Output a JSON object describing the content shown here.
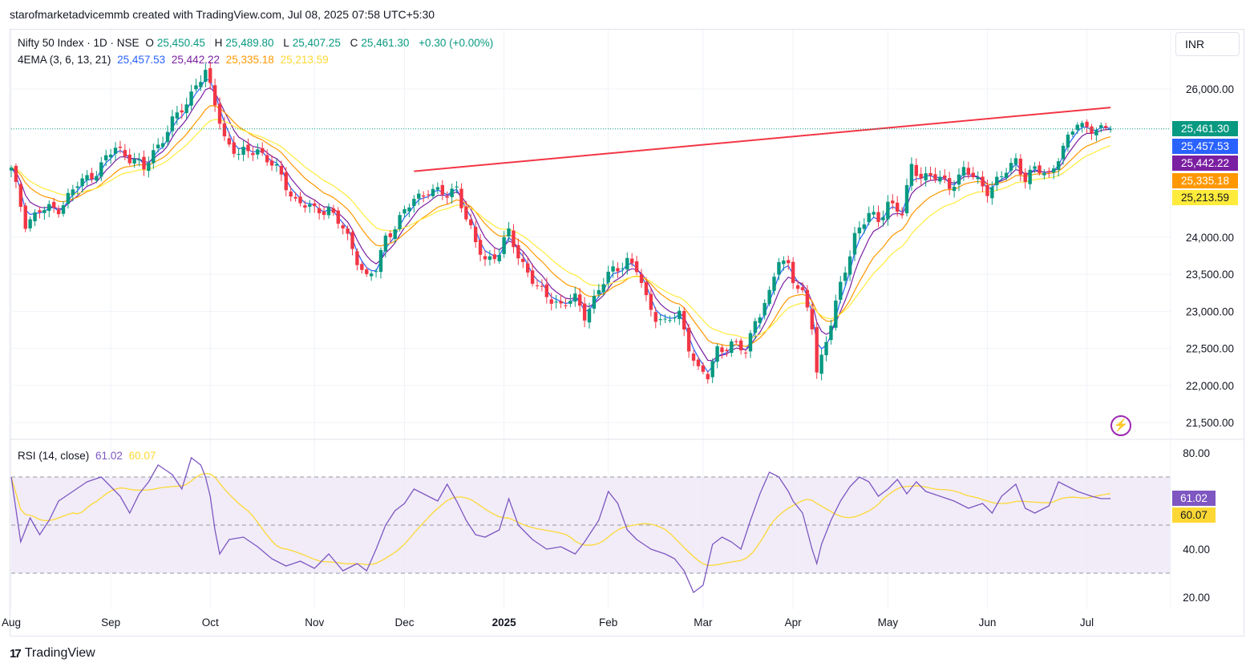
{
  "header": {
    "caption": "starofmarketadvicemmb created with TradingView.com, Jul 08, 2025 07:58 UTC+5:30"
  },
  "legend": {
    "symbol": "Nifty 50 Index · 1D · NSE",
    "open_label": "O",
    "open": "25,450.45",
    "high_label": "H",
    "high": "25,489.80",
    "low_label": "L",
    "low": "25,407.25",
    "close_label": "C",
    "close": "25,461.30",
    "change": "+0.30 (+0.00%)",
    "ema_label": "4EMA (3, 6, 13, 21)",
    "ema3": "25,457.53",
    "ema6": "25,442.22",
    "ema13": "25,335.18",
    "ema21": "25,213.59",
    "rsi_label": "RSI (14, close)",
    "rsi_value": "61.02",
    "rsi_ma_value": "60.07"
  },
  "toolbar": {
    "currency": "INR"
  },
  "footer": {
    "brand_mark": "17",
    "brand": "TradingView"
  },
  "colors": {
    "up": "#089981",
    "down": "#f23645",
    "ema3": "#2962ff",
    "ema6": "#7b1fa2",
    "ema13": "#ff9800",
    "ema21": "#ffeb3b",
    "trendline": "#f23645",
    "rsi": "#7e57c2",
    "rsi_ma": "#fdd835",
    "rsi_band": "#ede7f6"
  },
  "chart_data": {
    "type": "candlestick",
    "price_axis": {
      "ticks": [
        21500,
        22000,
        22500,
        23000,
        23500,
        24000,
        26000
      ],
      "tick_labels": [
        "21,500.00",
        "22,000.00",
        "22,500.00",
        "23,000.00",
        "23,500.00",
        "24,000.00",
        "26,000.00"
      ],
      "range": [
        21500,
        26000
      ]
    },
    "price_tags": [
      {
        "value": 25461.3,
        "label": "25,461.30",
        "color": "#089981"
      },
      {
        "value": 25457.53,
        "label": "25,457.53",
        "color": "#2962ff"
      },
      {
        "value": 25442.22,
        "label": "25,442.22",
        "color": "#7b1fa2"
      },
      {
        "value": 25335.18,
        "label": "25,335.18",
        "color": "#ff9800"
      },
      {
        "value": 25213.59,
        "label": "25,213.59",
        "color": "#ffeb3b"
      }
    ],
    "last_close": 25461.3,
    "time_axis": {
      "labels": [
        "Aug",
        "Sep",
        "Oct",
        "Nov",
        "Dec",
        "2025",
        "Feb",
        "Mar",
        "Apr",
        "May",
        "Jun",
        "Jul"
      ],
      "bar_index": [
        0,
        21,
        42,
        64,
        83,
        104,
        126,
        146,
        165,
        185,
        206,
        227
      ]
    },
    "trendline": {
      "from": {
        "bar": 85,
        "price": 24890
      },
      "to": {
        "bar": 232,
        "price": 25750
      }
    },
    "close_path": [
      [
        0,
        24900
      ],
      [
        3,
        24200
      ],
      [
        6,
        24350
      ],
      [
        10,
        24400
      ],
      [
        14,
        24700
      ],
      [
        18,
        24900
      ],
      [
        22,
        25200
      ],
      [
        26,
        25050
      ],
      [
        28,
        24900
      ],
      [
        30,
        25150
      ],
      [
        34,
        25550
      ],
      [
        37,
        25800
      ],
      [
        39,
        26100
      ],
      [
        41,
        26200
      ],
      [
        43,
        25800
      ],
      [
        45,
        25350
      ],
      [
        48,
        25100
      ],
      [
        52,
        25200
      ],
      [
        56,
        24900
      ],
      [
        60,
        24500
      ],
      [
        64,
        24350
      ],
      [
        67,
        24400
      ],
      [
        70,
        24100
      ],
      [
        72,
        23850
      ],
      [
        75,
        23450
      ],
      [
        77,
        23550
      ],
      [
        79,
        24000
      ],
      [
        82,
        24250
      ],
      [
        85,
        24500
      ],
      [
        88,
        24650
      ],
      [
        92,
        24550
      ],
      [
        94,
        24700
      ],
      [
        96,
        24250
      ],
      [
        98,
        23900
      ],
      [
        100,
        23700
      ],
      [
        103,
        23800
      ],
      [
        105,
        24050
      ],
      [
        107,
        23750
      ],
      [
        109,
        23550
      ],
      [
        111,
        23300
      ],
      [
        113,
        23200
      ],
      [
        116,
        23100
      ],
      [
        119,
        23150
      ],
      [
        121,
        22950
      ],
      [
        124,
        23300
      ],
      [
        127,
        23550
      ],
      [
        130,
        23700
      ],
      [
        132,
        23550
      ],
      [
        134,
        23150
      ],
      [
        136,
        22950
      ],
      [
        138,
        22850
      ],
      [
        141,
        22950
      ],
      [
        143,
        22550
      ],
      [
        145,
        22200
      ],
      [
        147,
        22100
      ],
      [
        149,
        22500
      ],
      [
        152,
        22550
      ],
      [
        155,
        22450
      ],
      [
        157,
        22900
      ],
      [
        160,
        23200
      ],
      [
        162,
        23700
      ],
      [
        164,
        23650
      ],
      [
        165,
        23450
      ],
      [
        167,
        23200
      ],
      [
        169,
        22800
      ],
      [
        170,
        22200
      ],
      [
        171,
        22400
      ],
      [
        173,
        22850
      ],
      [
        176,
        23550
      ],
      [
        178,
        24050
      ],
      [
        181,
        24300
      ],
      [
        183,
        24200
      ],
      [
        185,
        24500
      ],
      [
        188,
        24300
      ],
      [
        190,
        24950
      ],
      [
        192,
        24850
      ],
      [
        195,
        24800
      ],
      [
        198,
        24700
      ],
      [
        201,
        24900
      ],
      [
        204,
        24750
      ],
      [
        206,
        24650
      ],
      [
        209,
        24800
      ],
      [
        212,
        25050
      ],
      [
        214,
        24800
      ],
      [
        216,
        24900
      ],
      [
        219,
        24850
      ],
      [
        221,
        25100
      ],
      [
        223,
        25300
      ],
      [
        225,
        25550
      ],
      [
        227,
        25500
      ],
      [
        230,
        25420
      ],
      [
        232,
        25461
      ]
    ],
    "rsi_axis": {
      "ticks": [
        20,
        40,
        80
      ],
      "tick_labels": [
        "20.00",
        "40.00",
        "80.00"
      ],
      "range": [
        15,
        85
      ],
      "bands": [
        30,
        50,
        70
      ]
    },
    "rsi_path": [
      [
        0,
        70
      ],
      [
        2,
        43
      ],
      [
        4,
        53
      ],
      [
        6,
        46
      ],
      [
        8,
        52
      ],
      [
        10,
        60
      ],
      [
        13,
        64
      ],
      [
        16,
        68
      ],
      [
        19,
        70
      ],
      [
        21,
        66
      ],
      [
        23,
        62
      ],
      [
        25,
        55
      ],
      [
        27,
        63
      ],
      [
        29,
        68
      ],
      [
        31,
        75
      ],
      [
        34,
        71
      ],
      [
        36,
        65
      ],
      [
        38,
        78
      ],
      [
        40,
        75
      ],
      [
        41,
        70
      ],
      [
        42,
        62
      ],
      [
        43,
        48
      ],
      [
        44,
        38
      ],
      [
        46,
        44
      ],
      [
        49,
        45
      ],
      [
        52,
        41
      ],
      [
        55,
        36
      ],
      [
        58,
        33
      ],
      [
        61,
        35
      ],
      [
        64,
        32
      ],
      [
        67,
        38
      ],
      [
        70,
        31
      ],
      [
        73,
        34
      ],
      [
        75,
        31
      ],
      [
        77,
        40
      ],
      [
        79,
        50
      ],
      [
        81,
        56
      ],
      [
        83,
        59
      ],
      [
        85,
        65
      ],
      [
        87,
        63
      ],
      [
        90,
        60
      ],
      [
        92,
        67
      ],
      [
        94,
        60
      ],
      [
        96,
        52
      ],
      [
        98,
        46
      ],
      [
        100,
        45
      ],
      [
        103,
        48
      ],
      [
        105,
        61
      ],
      [
        107,
        50
      ],
      [
        110,
        44
      ],
      [
        113,
        40
      ],
      [
        116,
        41
      ],
      [
        119,
        38
      ],
      [
        121,
        43
      ],
      [
        124,
        52
      ],
      [
        126,
        64
      ],
      [
        128,
        59
      ],
      [
        130,
        48
      ],
      [
        132,
        44
      ],
      [
        135,
        40
      ],
      [
        138,
        38
      ],
      [
        140,
        36
      ],
      [
        142,
        31
      ],
      [
        144,
        22
      ],
      [
        146,
        25
      ],
      [
        148,
        42
      ],
      [
        150,
        45
      ],
      [
        152,
        43
      ],
      [
        154,
        40
      ],
      [
        156,
        52
      ],
      [
        158,
        63
      ],
      [
        160,
        72
      ],
      [
        162,
        70
      ],
      [
        164,
        64
      ],
      [
        165,
        60
      ],
      [
        167,
        55
      ],
      [
        169,
        40
      ],
      [
        170,
        34
      ],
      [
        171,
        42
      ],
      [
        173,
        52
      ],
      [
        175,
        60
      ],
      [
        177,
        66
      ],
      [
        179,
        70
      ],
      [
        181,
        68
      ],
      [
        183,
        62
      ],
      [
        185,
        65
      ],
      [
        187,
        69
      ],
      [
        189,
        63
      ],
      [
        191,
        68
      ],
      [
        193,
        64
      ],
      [
        196,
        62
      ],
      [
        199,
        60
      ],
      [
        202,
        57
      ],
      [
        205,
        59
      ],
      [
        207,
        55
      ],
      [
        209,
        62
      ],
      [
        212,
        67
      ],
      [
        214,
        57
      ],
      [
        216,
        55
      ],
      [
        219,
        58
      ],
      [
        221,
        68
      ],
      [
        223,
        66
      ],
      [
        225,
        64
      ],
      [
        228,
        62
      ],
      [
        230,
        61
      ],
      [
        232,
        61.02
      ]
    ]
  }
}
